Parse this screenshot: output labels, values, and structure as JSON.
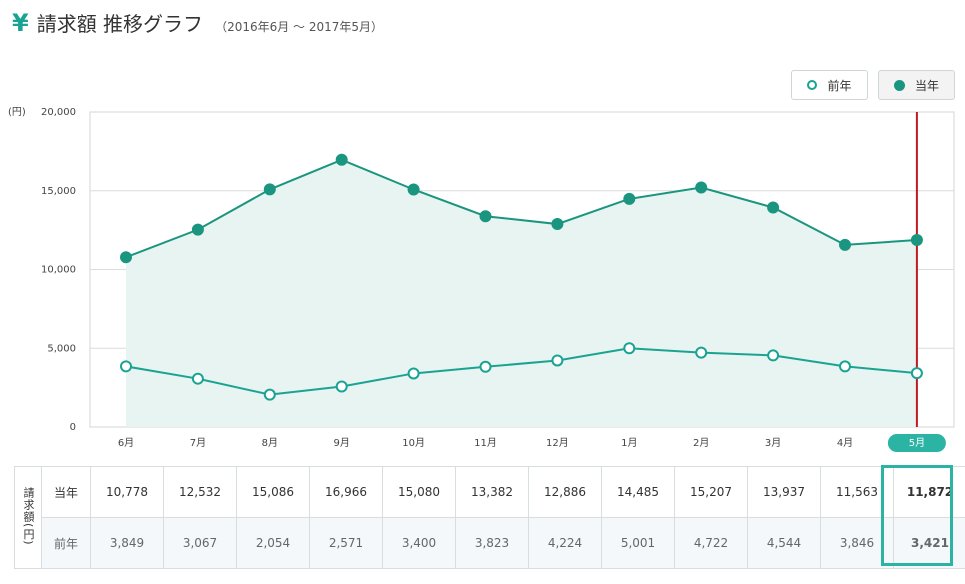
{
  "header": {
    "icon": "yen-icon",
    "title": "請求額 推移グラフ",
    "period": "（2016年6月 ～ 2017年5月）"
  },
  "legend": {
    "previous_year": "前年",
    "current_year": "当年"
  },
  "chart_data": {
    "type": "line",
    "categories": [
      "6月",
      "7月",
      "8月",
      "9月",
      "10月",
      "11月",
      "12月",
      "1月",
      "2月",
      "3月",
      "4月",
      "5月"
    ],
    "series": [
      {
        "name": "当年",
        "values": [
          10778,
          12532,
          15086,
          16966,
          15080,
          13382,
          12886,
          14485,
          15207,
          13937,
          11563,
          11872
        ],
        "filled_markers": true,
        "area_fill": true
      },
      {
        "name": "前年",
        "values": [
          3849,
          3067,
          2054,
          2571,
          3400,
          3823,
          4224,
          5001,
          4722,
          4544,
          3846,
          3421
        ],
        "filled_markers": false
      }
    ],
    "y_unit": "(円)",
    "y_ticks": [
      "0",
      "5,000",
      "10,000",
      "15,000",
      "20,000"
    ],
    "ylim": [
      0,
      20000
    ],
    "grid": true,
    "highlight_category": "5月",
    "colors": {
      "line": "#1a957f",
      "area": "#e7f4f1",
      "marker_open": "#1aa393",
      "highlight_line": "#c0191f",
      "pill": "#2bb3a3"
    }
  },
  "table": {
    "side_label": "請求額(円)",
    "rows": [
      {
        "label": "当年",
        "values": [
          "10,778",
          "12,532",
          "15,086",
          "16,966",
          "15,080",
          "13,382",
          "12,886",
          "14,485",
          "15,207",
          "13,937",
          "11,563",
          "11,872"
        ]
      },
      {
        "label": "前年",
        "values": [
          "3,849",
          "3,067",
          "2,054",
          "2,571",
          "3,400",
          "3,823",
          "4,224",
          "5,001",
          "4,722",
          "4,544",
          "3,846",
          "3,421"
        ]
      }
    ]
  }
}
